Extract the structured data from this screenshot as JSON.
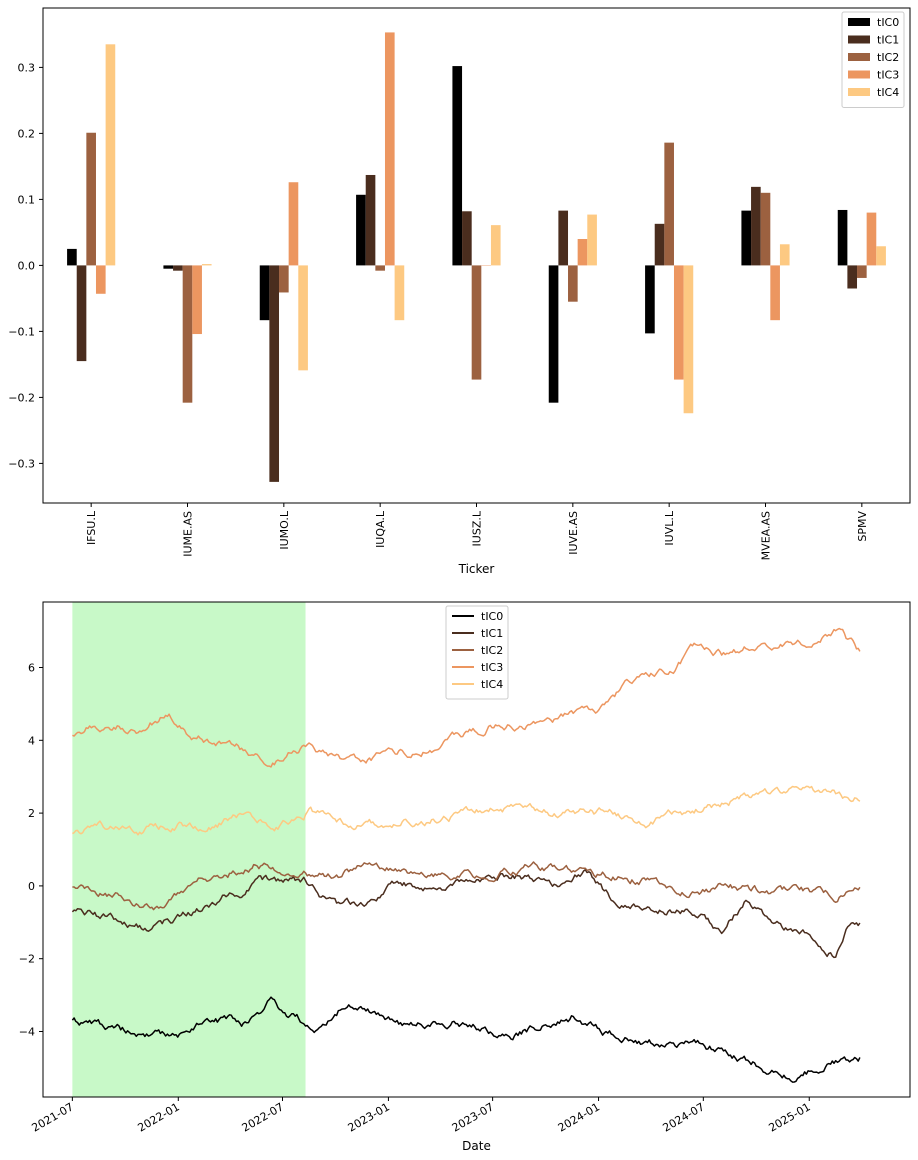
{
  "chart_data": [
    {
      "type": "bar",
      "title": "",
      "xlabel": "Ticker",
      "ylabel": "",
      "ylim": [
        -0.36,
        0.39
      ],
      "yticks": [
        -0.3,
        -0.2,
        -0.1,
        0.0,
        0.1,
        0.2,
        0.3
      ],
      "ytick_labels": [
        "−0.3",
        "−0.2",
        "−0.1",
        "0.0",
        "0.1",
        "0.2",
        "0.3"
      ],
      "legend_position": "upper right",
      "categories": [
        "IFSU.L",
        "IUME.AS",
        "IUMO.L",
        "IUQA.L",
        "IUSZ.L",
        "IUVE.AS",
        "IUVL.L",
        "MVEA.AS",
        "SPMV"
      ],
      "series": [
        {
          "name": "tIC0",
          "color": "#000000",
          "values": [
            0.025,
            -0.005,
            -0.083,
            0.107,
            0.302,
            -0.208,
            -0.103,
            0.083,
            0.084
          ]
        },
        {
          "name": "tIC1",
          "color": "#4a2d1e",
          "values": [
            -0.145,
            -0.008,
            -0.328,
            0.137,
            0.082,
            0.083,
            0.063,
            0.119,
            -0.035
          ]
        },
        {
          "name": "tIC2",
          "color": "#9c6140",
          "values": [
            0.201,
            -0.208,
            -0.041,
            -0.008,
            -0.173,
            -0.055,
            0.186,
            0.11,
            -0.019
          ]
        },
        {
          "name": "tIC3",
          "color": "#ec9660",
          "values": [
            -0.043,
            -0.104,
            0.126,
            0.353,
            0.0,
            0.04,
            -0.173,
            -0.083,
            0.08
          ]
        },
        {
          "name": "tIC4",
          "color": "#fdc982",
          "values": [
            0.335,
            0.002,
            -0.159,
            -0.083,
            0.061,
            0.077,
            -0.224,
            0.032,
            0.029
          ]
        }
      ]
    },
    {
      "type": "line",
      "title": "",
      "xlabel": "Date",
      "ylabel": "",
      "ylim": [
        -5.8,
        7.8
      ],
      "yticks": [
        -4,
        -2,
        0,
        2,
        4,
        6
      ],
      "ytick_labels": [
        "−4",
        "−2",
        "0",
        "2",
        "4",
        "6"
      ],
      "xlim": [
        "2021-05-11",
        "2025-06-25"
      ],
      "xticks": [
        "2021-07",
        "2022-01",
        "2022-07",
        "2023-01",
        "2023-07",
        "2024-01",
        "2024-07",
        "2025-01"
      ],
      "legend_position": "upper center",
      "shaded_region": {
        "start": "2021-07-01",
        "end": "2022-08-10",
        "color": "#c8f9c8"
      },
      "series": [
        {
          "name": "tIC0",
          "color": "#000000",
          "points": [
            [
              "2021-07-01",
              -3.7
            ],
            [
              "2021-10-01",
              -4.0
            ],
            [
              "2021-12-15",
              -4.2
            ],
            [
              "2022-03-01",
              -3.7
            ],
            [
              "2022-05-01",
              -3.8
            ],
            [
              "2022-06-10",
              -3.2
            ],
            [
              "2022-08-25",
              -3.9
            ],
            [
              "2022-10-15",
              -3.3
            ],
            [
              "2022-12-15",
              -3.5
            ],
            [
              "2023-02-01",
              -3.9
            ],
            [
              "2023-05-01",
              -3.7
            ],
            [
              "2023-08-01",
              -4.1
            ],
            [
              "2023-11-15",
              -3.6
            ],
            [
              "2024-01-15",
              -4.1
            ],
            [
              "2024-04-01",
              -4.3
            ],
            [
              "2024-06-15",
              -4.4
            ],
            [
              "2024-08-01",
              -4.5
            ],
            [
              "2024-10-01",
              -4.9
            ],
            [
              "2024-12-01",
              -5.3
            ],
            [
              "2025-01-15",
              -5.0
            ],
            [
              "2025-04-01",
              -4.7
            ]
          ]
        },
        {
          "name": "tIC1",
          "color": "#4a2d1e",
          "points": [
            [
              "2021-07-01",
              -0.7
            ],
            [
              "2021-09-01",
              -0.9
            ],
            [
              "2021-11-15",
              -1.2
            ],
            [
              "2022-02-01",
              -0.7
            ],
            [
              "2022-04-01",
              -0.2
            ],
            [
              "2022-06-01",
              0.1
            ],
            [
              "2022-08-10",
              0.1
            ],
            [
              "2022-10-10",
              -0.6
            ],
            [
              "2022-12-15",
              -0.3
            ],
            [
              "2023-01-15",
              0.0
            ],
            [
              "2023-04-15",
              0.0
            ],
            [
              "2023-07-15",
              0.3
            ],
            [
              "2023-10-15",
              0.1
            ],
            [
              "2023-12-10",
              0.4
            ],
            [
              "2024-02-01",
              -0.5
            ],
            [
              "2024-04-01",
              -0.7
            ],
            [
              "2024-06-01",
              -0.6
            ],
            [
              "2024-08-01",
              -1.2
            ],
            [
              "2024-09-15",
              -0.3
            ],
            [
              "2024-11-01",
              -1.0
            ],
            [
              "2025-01-01",
              -1.4
            ],
            [
              "2025-02-15",
              -1.8
            ],
            [
              "2025-03-15",
              -1.0
            ],
            [
              "2025-04-01",
              -1.0
            ]
          ]
        },
        {
          "name": "tIC2",
          "color": "#9c6140",
          "points": [
            [
              "2021-07-01",
              -0.1
            ],
            [
              "2021-09-15",
              -0.3
            ],
            [
              "2021-12-01",
              -0.5
            ],
            [
              "2022-01-15",
              0.0
            ],
            [
              "2022-03-15",
              0.3
            ],
            [
              "2022-05-15",
              0.6
            ],
            [
              "2022-08-01",
              0.4
            ],
            [
              "2022-10-01",
              0.3
            ],
            [
              "2022-12-01",
              0.5
            ],
            [
              "2023-02-01",
              0.4
            ],
            [
              "2023-05-01",
              0.4
            ],
            [
              "2023-07-01",
              0.3
            ],
            [
              "2023-09-01",
              0.5
            ],
            [
              "2023-11-01",
              0.5
            ],
            [
              "2024-01-15",
              0.3
            ],
            [
              "2024-04-01",
              0.2
            ],
            [
              "2024-06-01",
              -0.1
            ],
            [
              "2024-08-01",
              0.0
            ],
            [
              "2024-10-01",
              -0.1
            ],
            [
              "2025-01-01",
              -0.2
            ],
            [
              "2025-02-15",
              -0.3
            ],
            [
              "2025-04-01",
              0.1
            ]
          ]
        },
        {
          "name": "tIC3",
          "color": "#ec9660",
          "points": [
            [
              "2021-07-01",
              4.2
            ],
            [
              "2021-09-01",
              4.5
            ],
            [
              "2021-11-01",
              4.3
            ],
            [
              "2021-12-15",
              4.8
            ],
            [
              "2022-02-01",
              4.1
            ],
            [
              "2022-04-01",
              4.0
            ],
            [
              "2022-06-01",
              3.4
            ],
            [
              "2022-08-10",
              3.8
            ],
            [
              "2022-11-01",
              3.4
            ],
            [
              "2023-01-01",
              3.6
            ],
            [
              "2023-04-01",
              3.8
            ],
            [
              "2023-07-01",
              4.4
            ],
            [
              "2023-10-01",
              4.5
            ],
            [
              "2024-01-01",
              4.9
            ],
            [
              "2024-03-01",
              5.7
            ],
            [
              "2024-05-01",
              5.9
            ],
            [
              "2024-06-15",
              6.5
            ],
            [
              "2024-08-15",
              6.3
            ],
            [
              "2024-10-15",
              6.7
            ],
            [
              "2025-01-01",
              6.8
            ],
            [
              "2025-02-15",
              7.1
            ],
            [
              "2025-04-01",
              6.4
            ]
          ]
        },
        {
          "name": "tIC4",
          "color": "#fdc982",
          "points": [
            [
              "2021-07-01",
              1.5
            ],
            [
              "2021-09-01",
              1.6
            ],
            [
              "2021-11-01",
              1.5
            ],
            [
              "2022-01-01",
              1.7
            ],
            [
              "2022-03-01",
              1.7
            ],
            [
              "2022-05-01",
              2.0
            ],
            [
              "2022-07-01",
              1.7
            ],
            [
              "2022-08-15",
              2.1
            ],
            [
              "2022-10-01",
              1.7
            ],
            [
              "2023-01-01",
              1.7
            ],
            [
              "2023-04-01",
              1.9
            ],
            [
              "2023-07-01",
              2.2
            ],
            [
              "2023-10-01",
              2.0
            ],
            [
              "2024-01-01",
              2.0
            ],
            [
              "2024-04-01",
              1.8
            ],
            [
              "2024-07-01",
              2.1
            ],
            [
              "2024-10-01",
              2.5
            ],
            [
              "2024-12-15",
              2.7
            ],
            [
              "2025-02-01",
              2.5
            ],
            [
              "2025-04-01",
              2.4
            ]
          ]
        }
      ]
    }
  ]
}
